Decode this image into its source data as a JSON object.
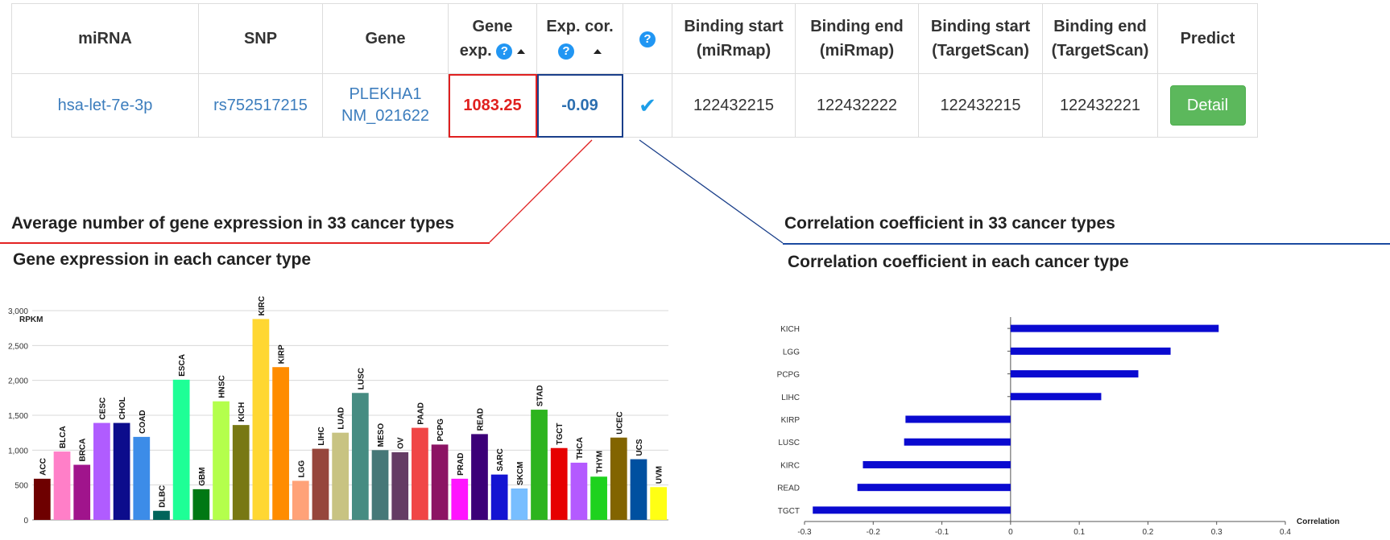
{
  "table": {
    "headers": {
      "mirna": "miRNA",
      "snp": "SNP",
      "gene": "Gene",
      "gene_exp_line1": "Gene",
      "gene_exp_line2": "exp.",
      "exp_cor": "Exp. cor.",
      "help_glyph": "?",
      "binding_start_mirmap_line1": "Binding start",
      "binding_start_mirmap_line2": "(miRmap)",
      "binding_end_mirmap_line1": "Binding end",
      "binding_end_mirmap_line2": "(miRmap)",
      "binding_start_ts_line1": "Binding start",
      "binding_start_ts_line2": "(TargetScan)",
      "binding_end_ts_line1": "Binding end",
      "binding_end_ts_line2": "(TargetScan)",
      "predict": "Predict"
    },
    "row": {
      "mirna": "hsa-let-7e-3p",
      "snp": "rs752517215",
      "gene_symbol": "PLEKHA1",
      "gene_transcript": "NM_021622",
      "gene_exp": "1083.25",
      "exp_cor": "-0.09",
      "check": "✔",
      "binding_start_mirmap": "122432215",
      "binding_end_mirmap": "122432222",
      "binding_start_ts": "122432215",
      "binding_end_ts": "122432221",
      "detail_label": "Detail"
    }
  },
  "annotations": {
    "left_panel_title": "Average number of gene expression in 33 cancer types",
    "right_panel_title": "Correlation coefficient in 33 cancer types",
    "left_chart_title": "Gene expression in each cancer type",
    "right_chart_title": "Correlation coefficient in each cancer type"
  },
  "colors": {
    "gene_exp_highlight": "#e02020",
    "exp_cor_highlight": "#1a3f8a",
    "detail_button": "#5cb85c",
    "correlation_bar": "#0a0ad0"
  },
  "chart_data": [
    {
      "type": "bar",
      "title": "",
      "ylabel": "RPKM",
      "xlabel": "",
      "ylim": [
        0,
        3000
      ],
      "yticks": [
        "0",
        "500",
        "1,000",
        "1,500",
        "2,000",
        "2,500",
        "3,000"
      ],
      "grid": true,
      "categories": [
        "ACC",
        "BLCA",
        "BRCA",
        "CESC",
        "CHOL",
        "COAD",
        "DLBC",
        "ESCA",
        "GBM",
        "HNSC",
        "KICH",
        "KIRC",
        "KIRP",
        "LGG",
        "LIHC",
        "LUAD",
        "LUSC",
        "MESO",
        "OV",
        "PAAD",
        "PCPG",
        "PRAD",
        "READ",
        "SARC",
        "SKCM",
        "STAD",
        "TGCT",
        "THCA",
        "THYM",
        "UCEC",
        "UCS",
        "UVM"
      ],
      "values": [
        590,
        980,
        790,
        1390,
        1390,
        1190,
        130,
        2010,
        440,
        1700,
        1360,
        2880,
        2190,
        560,
        1020,
        1250,
        1820,
        1000,
        970,
        1320,
        1080,
        590,
        1230,
        650,
        450,
        1580,
        1030,
        820,
        620,
        1180,
        870,
        470
      ],
      "colors": [
        "#6e0000",
        "#ff7fc8",
        "#a0148c",
        "#b05cff",
        "#0c0c8c",
        "#3c8ce8",
        "#00645a",
        "#1eff96",
        "#007814",
        "#b4ff4c",
        "#787814",
        "#ffd732",
        "#ff8c00",
        "#ffa278",
        "#96463c",
        "#c8c382",
        "#468c82",
        "#467878",
        "#643c64",
        "#f04646",
        "#8c1464",
        "#ff14ff",
        "#3c0078",
        "#1414d2",
        "#78beff",
        "#2db41e",
        "#e60000",
        "#b45aff",
        "#1ed21e",
        "#826400",
        "#0050a0",
        "#ffff14"
      ]
    },
    {
      "type": "bar",
      "orientation": "horizontal",
      "title": "",
      "xlabel": "Correlation",
      "xlim": [
        -0.3,
        0.4
      ],
      "xticks": [
        "-0.3",
        "-0.2",
        "-0.1",
        "0",
        "0.1",
        "0.2",
        "0.3",
        "0.4"
      ],
      "categories": [
        "KICH",
        "LGG",
        "PCPG",
        "LIHC",
        "KIRP",
        "LUSC",
        "KIRC",
        "READ",
        "TGCT"
      ],
      "values": [
        0.303,
        0.233,
        0.186,
        0.132,
        -0.153,
        -0.155,
        -0.215,
        -0.223,
        -0.288
      ]
    }
  ]
}
